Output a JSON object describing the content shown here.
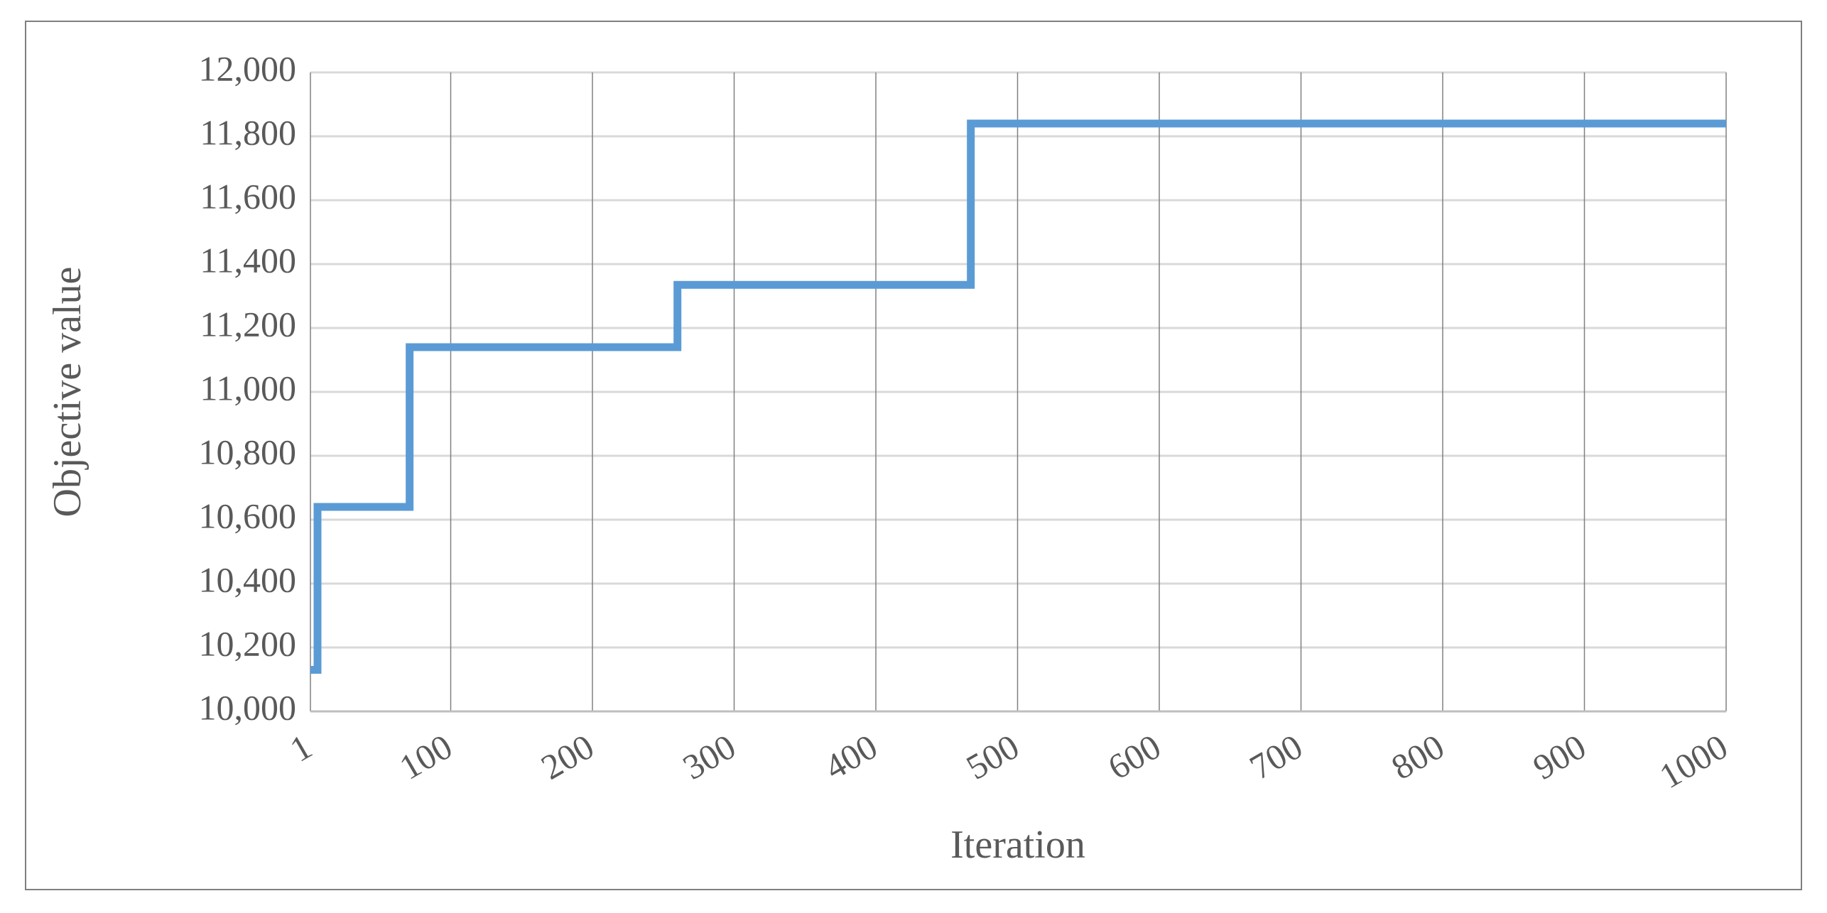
{
  "chart_data": {
    "type": "line",
    "x_label": "Iteration",
    "y_label": "Objective value",
    "x": [
      1,
      6,
      6,
      71,
      71,
      260,
      260,
      467,
      467,
      1000
    ],
    "series": [
      {
        "color": "#5b9bd5",
        "values": [
          10130,
          10130,
          10640,
          10640,
          11140,
          11140,
          11335,
          11335,
          11840,
          11840
        ]
      }
    ],
    "xlim": [
      1,
      1000
    ],
    "xticks": [
      1,
      100,
      200,
      300,
      400,
      500,
      600,
      700,
      800,
      900,
      1000
    ],
    "ylim": [
      10000,
      12000
    ],
    "yticks": [
      {
        "value": 10000,
        "label": "10,000"
      },
      {
        "value": 10200,
        "label": "10,200"
      },
      {
        "value": 10400,
        "label": "10,400"
      },
      {
        "value": 10600,
        "label": "10,600"
      },
      {
        "value": 10800,
        "label": "10,800"
      },
      {
        "value": 11000,
        "label": "11,000"
      },
      {
        "value": 11200,
        "label": "11,200"
      },
      {
        "value": 11400,
        "label": "11,400"
      },
      {
        "value": 11600,
        "label": "11,600"
      },
      {
        "value": 11800,
        "label": "11,800"
      },
      {
        "value": 12000,
        "label": "12,000"
      }
    ],
    "grid": true
  }
}
